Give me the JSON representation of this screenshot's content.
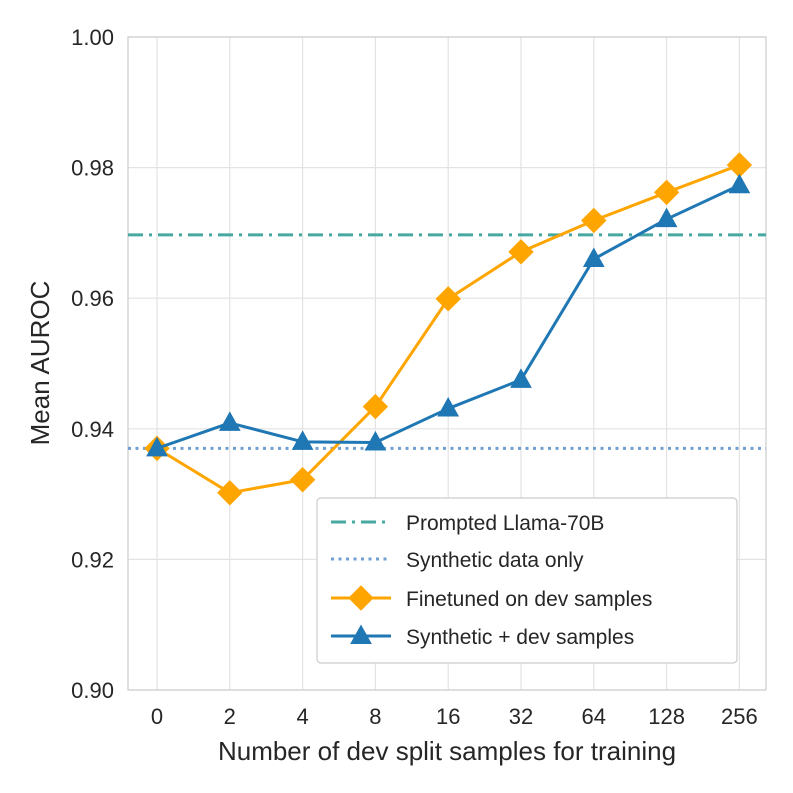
{
  "chart_data": {
    "type": "line",
    "title": "",
    "xlabel": "Number of dev split samples for training",
    "ylabel": "Mean AUROC",
    "categories": [
      "0",
      "2",
      "4",
      "8",
      "16",
      "32",
      "64",
      "128",
      "256"
    ],
    "ylim": [
      0.9,
      1.0
    ],
    "yticks": [
      "0.90",
      "0.92",
      "0.94",
      "0.96",
      "0.98",
      "1.00"
    ],
    "grid": true,
    "legend_position": "lower-right",
    "hlines": [
      {
        "name": "Prompted Llama-70B",
        "value": 0.9697,
        "color": "#46a8a0",
        "style": "dashdot"
      },
      {
        "name": "Synthetic data only",
        "value": 0.937,
        "color": "#6f9fd0",
        "style": "dotted"
      }
    ],
    "series": [
      {
        "name": "Finetuned on dev samples",
        "color": "#ffa500",
        "marker": "diamond",
        "values": [
          0.937,
          0.9302,
          0.9322,
          0.9434,
          0.9599,
          0.9671,
          0.9719,
          0.9762,
          0.9804
        ]
      },
      {
        "name": "Synthetic + dev samples",
        "color": "#1f77b4",
        "marker": "triangle",
        "values": [
          0.937,
          0.9409,
          0.938,
          0.9379,
          0.9431,
          0.9475,
          0.966,
          0.9721,
          0.9773
        ]
      }
    ]
  }
}
